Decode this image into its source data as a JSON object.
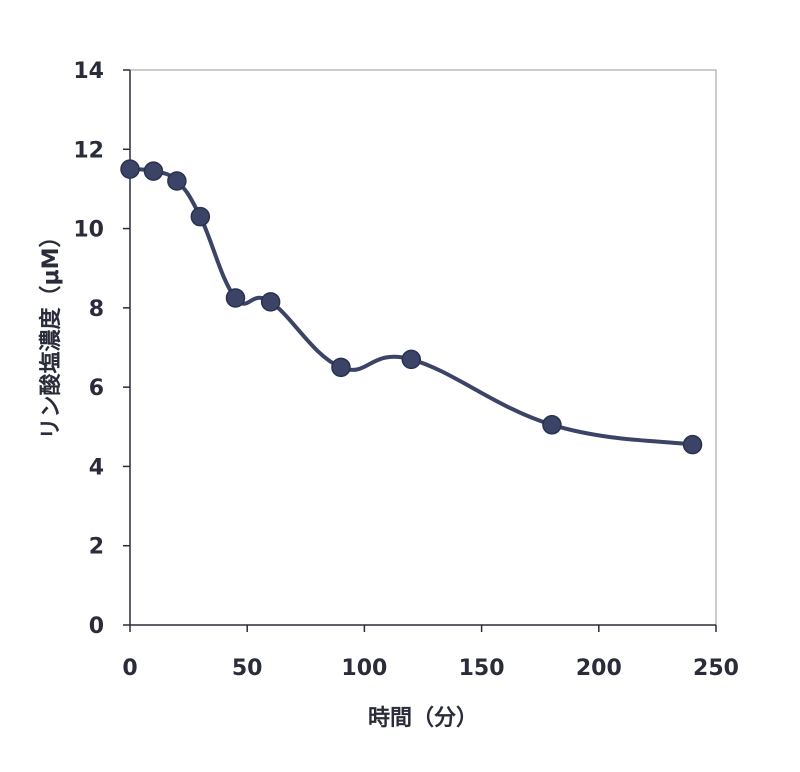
{
  "chart_data": {
    "type": "line",
    "title": "",
    "xlabel": "時間（分）",
    "ylabel": "リン酸塩濃度（μM）",
    "xlim": [
      0,
      250
    ],
    "ylim": [
      0,
      14
    ],
    "xticks": [
      "0",
      "50",
      "100",
      "150",
      "200",
      "250"
    ],
    "yticks": [
      "0",
      "2",
      "4",
      "6",
      "8",
      "10",
      "12",
      "14"
    ],
    "grid": false,
    "smooth": true,
    "series": [
      {
        "name": "",
        "color": "#3b4466",
        "marker": "circle",
        "x": [
          0,
          10,
          20,
          30,
          45,
          60,
          90,
          120,
          180,
          240
        ],
        "y": [
          11.5,
          11.45,
          11.2,
          10.3,
          8.25,
          8.15,
          6.5,
          6.7,
          5.05,
          4.55
        ]
      }
    ]
  }
}
